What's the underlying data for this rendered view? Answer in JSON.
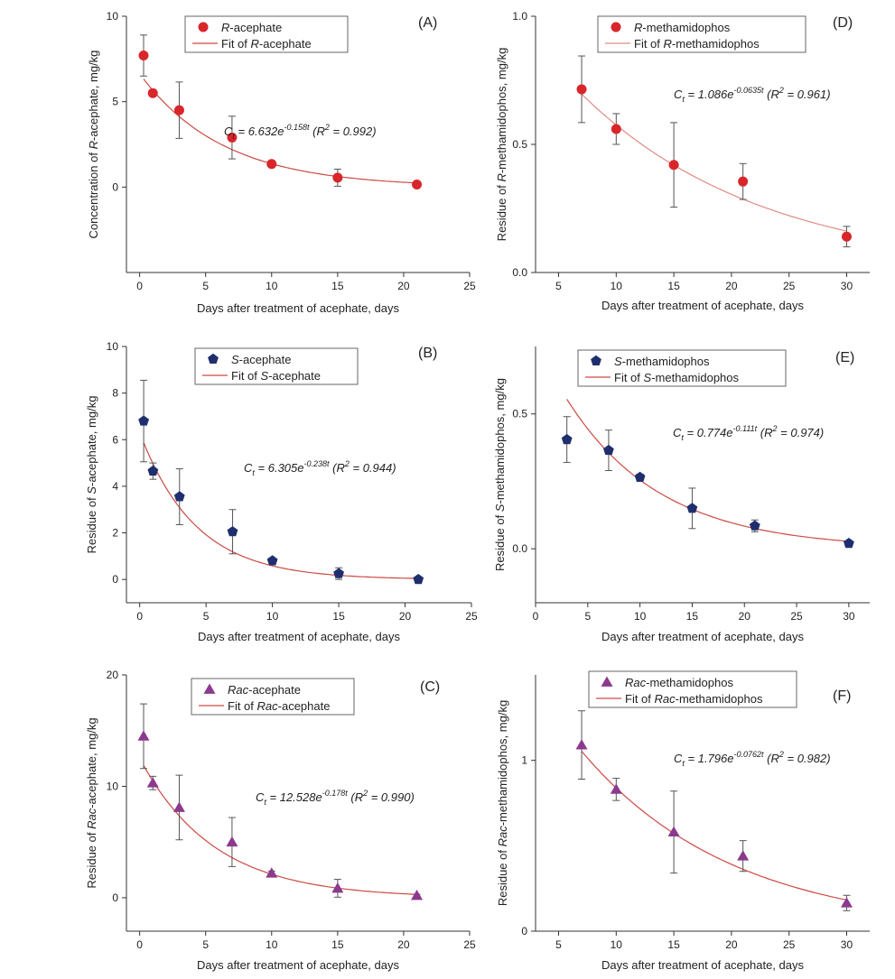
{
  "chart_data": [
    {
      "id": "A",
      "type": "scatter",
      "panel_label": "(A)",
      "xlabel": "Days after treatment of acephate, days",
      "ylabel_parts": [
        {
          "t": "Concentration of "
        },
        {
          "t": "R",
          "i": true
        },
        {
          "t": "-acephate, mg/kg"
        }
      ],
      "xlim": [
        -1,
        25
      ],
      "ylim": [
        -5,
        10
      ],
      "xticks": [
        0,
        5,
        10,
        15,
        20,
        25
      ],
      "yticks": [
        0,
        5,
        10
      ],
      "marker": "circle",
      "color": "#d9262a",
      "fit_color": "#cc4a44",
      "legend_series_parts": [
        {
          "t": "R",
          "i": true
        },
        {
          "t": "-acephate"
        }
      ],
      "legend_fit_parts": [
        {
          "t": "Fit of "
        },
        {
          "t": "R",
          "i": true
        },
        {
          "t": "-acephate"
        }
      ],
      "fit": {
        "a": 6.632,
        "k": 0.158,
        "x_start": 0.3,
        "x_end": 21
      },
      "equation": {
        "prefix": "C",
        "sub": "t",
        "text": " = 6.632e",
        "sup": "-0.158t",
        "r2": " (R",
        "r2sup": "2",
        "tail": " = 0.992)"
      },
      "points": [
        {
          "x": 0.3,
          "y": 7.7,
          "err": 1.2
        },
        {
          "x": 1,
          "y": 5.5,
          "err": 0.1
        },
        {
          "x": 3,
          "y": 4.5,
          "err": 1.65
        },
        {
          "x": 7,
          "y": 2.9,
          "err": 1.25
        },
        {
          "x": 10,
          "y": 1.35,
          "err": 0.1
        },
        {
          "x": 15,
          "y": 0.55,
          "err": 0.5
        },
        {
          "x": 21,
          "y": 0.15,
          "err": 0.05
        }
      ]
    },
    {
      "id": "D",
      "type": "scatter",
      "panel_label": "(D)",
      "xlabel": "Days after treatment of acephate, days",
      "ylabel_parts": [
        {
          "t": "Residue of "
        },
        {
          "t": "R",
          "i": true
        },
        {
          "t": "-methamidophos, mg/kg"
        }
      ],
      "xlim": [
        3,
        32
      ],
      "ylim": [
        0,
        1.0
      ],
      "xticks": [
        5,
        10,
        15,
        20,
        25,
        30
      ],
      "yticks": [
        0.0,
        0.5,
        1.0
      ],
      "tick_decimals": 1,
      "marker": "circle",
      "color": "#d9262a",
      "fit_color": "#e08a84",
      "legend_series_parts": [
        {
          "t": "R",
          "i": true
        },
        {
          "t": "-methamidophos"
        }
      ],
      "legend_fit_parts": [
        {
          "t": "Fit of "
        },
        {
          "t": "R",
          "i": true
        },
        {
          "t": "-methamidophos"
        }
      ],
      "fit": {
        "a": 1.086,
        "k": 0.0635,
        "x_start": 7,
        "x_end": 30
      },
      "equation": {
        "prefix": "C",
        "sub": "t",
        "text": " = 1.086e",
        "sup": "-0.0635t",
        "r2": " (R",
        "r2sup": "2",
        "tail": " = 0.961)"
      },
      "points": [
        {
          "x": 7,
          "y": 0.715,
          "err": 0.13
        },
        {
          "x": 10,
          "y": 0.56,
          "err": 0.06
        },
        {
          "x": 15,
          "y": 0.42,
          "err": 0.165
        },
        {
          "x": 21,
          "y": 0.355,
          "err": 0.07
        },
        {
          "x": 30,
          "y": 0.14,
          "err": 0.04
        }
      ]
    },
    {
      "id": "B",
      "type": "scatter",
      "panel_label": "(B)",
      "xlabel": "Days after treatment of acephate, days",
      "ylabel_parts": [
        {
          "t": "Residue of "
        },
        {
          "t": "S",
          "i": true
        },
        {
          "t": "-acephate, mg/kg"
        }
      ],
      "xlim": [
        -1,
        25
      ],
      "ylim": [
        -1,
        10
      ],
      "xticks": [
        0,
        5,
        10,
        15,
        20,
        25
      ],
      "yticks": [
        0,
        2,
        4,
        6,
        8,
        10
      ],
      "marker": "pentagon",
      "color": "#1f2f6e",
      "fit_color": "#cc4a44",
      "legend_series_parts": [
        {
          "t": "S",
          "i": true
        },
        {
          "t": "-acephate"
        }
      ],
      "legend_fit_parts": [
        {
          "t": "Fit of "
        },
        {
          "t": "S",
          "i": true
        },
        {
          "t": "-acephate"
        }
      ],
      "fit": {
        "a": 6.305,
        "k": 0.238,
        "x_start": 0.3,
        "x_end": 21
      },
      "equation": {
        "prefix": "C",
        "sub": "t",
        "text": " = 6.305e",
        "sup": "-0.238t",
        "r2": " (R",
        "r2sup": "2",
        "tail": " = 0.944)"
      },
      "points": [
        {
          "x": 0.3,
          "y": 6.8,
          "err": 1.75
        },
        {
          "x": 1,
          "y": 4.65,
          "err": 0.35
        },
        {
          "x": 3,
          "y": 3.55,
          "err": 1.2
        },
        {
          "x": 7,
          "y": 2.05,
          "err": 0.95
        },
        {
          "x": 10,
          "y": 0.8,
          "err": 0.08
        },
        {
          "x": 15,
          "y": 0.25,
          "err": 0.25
        },
        {
          "x": 21,
          "y": 0.0,
          "err": 0.04
        }
      ]
    },
    {
      "id": "E",
      "type": "scatter",
      "panel_label": "(E)",
      "xlabel": "Days after treatment of acephate, days",
      "ylabel_parts": [
        {
          "t": "Residue of "
        },
        {
          "t": "S",
          "i": true
        },
        {
          "t": "-methamidophos, mg/kg"
        }
      ],
      "xlim": [
        0,
        32
      ],
      "ylim": [
        -0.2,
        0.75
      ],
      "xticks": [
        0,
        5,
        10,
        15,
        20,
        25,
        30
      ],
      "yticks": [
        0.0,
        0.5
      ],
      "tick_decimals": 1,
      "marker": "pentagon",
      "color": "#1f2f6e",
      "fit_color": "#cc4a44",
      "legend_series_parts": [
        {
          "t": "S",
          "i": true
        },
        {
          "t": "-methamidophos"
        }
      ],
      "legend_fit_parts": [
        {
          "t": "Fit of "
        },
        {
          "t": "S",
          "i": true
        },
        {
          "t": "-methamidophos"
        }
      ],
      "fit": {
        "a": 0.774,
        "k": 0.111,
        "x_start": 3,
        "x_end": 30
      },
      "equation": {
        "prefix": "C",
        "sub": "t",
        "text": " = 0.774e",
        "sup": "-0.111t",
        "r2": " (R",
        "r2sup": "2",
        "tail": " = 0.974)"
      },
      "points": [
        {
          "x": 3,
          "y": 0.405,
          "err": 0.085
        },
        {
          "x": 7,
          "y": 0.365,
          "err": 0.075
        },
        {
          "x": 10,
          "y": 0.265,
          "err": 0.012
        },
        {
          "x": 15,
          "y": 0.15,
          "err": 0.075
        },
        {
          "x": 21,
          "y": 0.085,
          "err": 0.022
        },
        {
          "x": 30,
          "y": 0.02,
          "err": 0.008
        }
      ]
    },
    {
      "id": "C",
      "type": "scatter",
      "panel_label": "(C)",
      "xlabel": "Days after treatment of acephate, days",
      "ylabel_parts": [
        {
          "i": true,
          "t": "Rac"
        },
        {
          "t": "-acephate, mg/kg"
        }
      ],
      "ylabel_prefix": "Residue of ",
      "xlim": [
        -1,
        25
      ],
      "ylim": [
        -3,
        20
      ],
      "xticks": [
        0,
        5,
        10,
        15,
        20,
        25
      ],
      "yticks": [
        0,
        10,
        20
      ],
      "marker": "triangle",
      "color": "#8b3a8e",
      "fit_color": "#cc4a44",
      "legend_series_parts": [
        {
          "t": "Rac",
          "i": true
        },
        {
          "t": "-acephate"
        }
      ],
      "legend_fit_parts": [
        {
          "t": "Fit of "
        },
        {
          "t": "Rac",
          "i": true
        },
        {
          "t": "-acephate"
        }
      ],
      "fit": {
        "a": 12.528,
        "k": 0.178,
        "x_start": 0.3,
        "x_end": 21
      },
      "equation": {
        "prefix": "C",
        "sub": "t",
        "text": " = 12.528e",
        "sup": "-0.178t",
        "r2": " (R",
        "r2sup": "2",
        "tail": " = 0.990)"
      },
      "points": [
        {
          "x": 0.3,
          "y": 14.5,
          "err": 2.9
        },
        {
          "x": 1,
          "y": 10.3,
          "err": 0.6
        },
        {
          "x": 3,
          "y": 8.1,
          "err": 2.9
        },
        {
          "x": 7,
          "y": 5.0,
          "err": 2.2
        },
        {
          "x": 10,
          "y": 2.2,
          "err": 0.2
        },
        {
          "x": 15,
          "y": 0.85,
          "err": 0.8
        },
        {
          "x": 21,
          "y": 0.2,
          "err": 0.1
        }
      ]
    },
    {
      "id": "F",
      "type": "scatter",
      "panel_label": "(F)",
      "xlabel": "Days after treatment of acephate, days",
      "ylabel_parts": [
        {
          "i": true,
          "t": "Rac"
        },
        {
          "t": "-methamidophos, mg/kg"
        }
      ],
      "ylabel_prefix": "Residue of ",
      "xlim": [
        3,
        32
      ],
      "ylim": [
        0,
        1.5
      ],
      "xticks": [
        5,
        10,
        15,
        20,
        25,
        30
      ],
      "yticks": [
        0,
        1
      ],
      "marker": "triangle",
      "color": "#8b3a8e",
      "fit_color": "#cc4a44",
      "legend_series_parts": [
        {
          "t": "Rac",
          "i": true
        },
        {
          "t": "-methamidophos"
        }
      ],
      "legend_fit_parts": [
        {
          "t": "Fit of "
        },
        {
          "t": "Rac",
          "i": true
        },
        {
          "t": "-methamidophos"
        }
      ],
      "fit": {
        "a": 1.796,
        "k": 0.0762,
        "x_start": 7,
        "x_end": 30
      },
      "equation": {
        "prefix": "C",
        "sub": "t",
        "text": " = 1.796e",
        "sup": "-0.0762t",
        "r2": " (R",
        "r2sup": "2",
        "tail": " = 0.982)"
      },
      "points": [
        {
          "x": 7,
          "y": 1.09,
          "err": 0.2
        },
        {
          "x": 10,
          "y": 0.83,
          "err": 0.065
        },
        {
          "x": 15,
          "y": 0.58,
          "err": 0.24
        },
        {
          "x": 21,
          "y": 0.44,
          "err": 0.09
        },
        {
          "x": 30,
          "y": 0.165,
          "err": 0.045
        }
      ]
    }
  ]
}
